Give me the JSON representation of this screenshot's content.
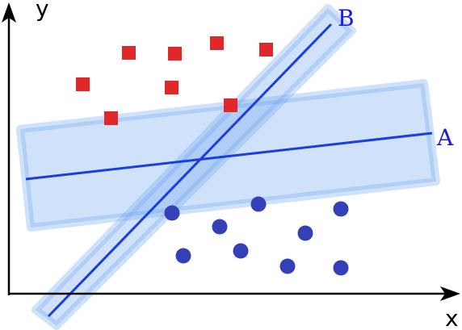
{
  "axes": {
    "y_label": "y",
    "x_label": "x"
  },
  "lines": [
    {
      "label": "A"
    },
    {
      "label": "B"
    }
  ]
}
